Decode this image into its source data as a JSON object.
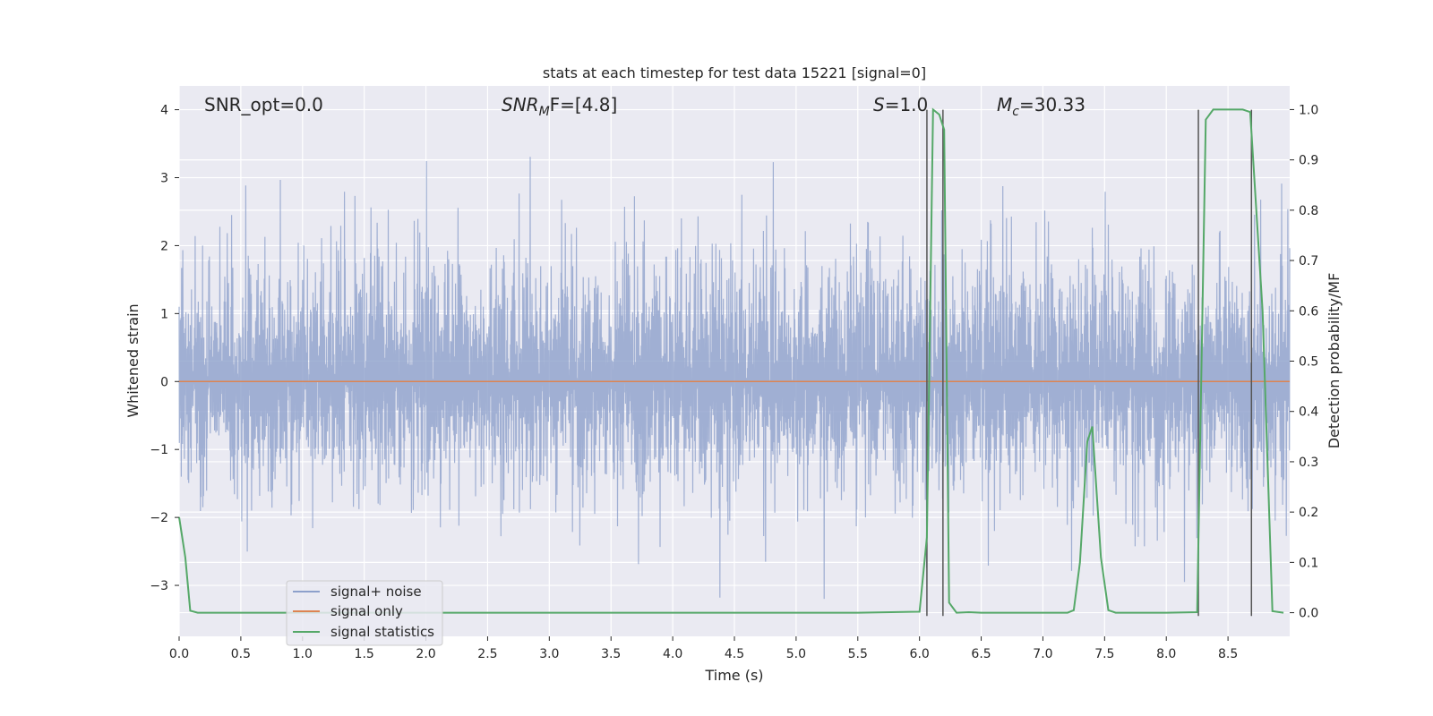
{
  "chart_data": {
    "type": "line",
    "title": "stats at each timestep for test data 15221 [signal=0]",
    "xlabel": "Time (s)",
    "ylabel": "Whitened strain",
    "y2label": "Detection probability/MF",
    "xlim": [
      0,
      9.0
    ],
    "ylim": [
      -3.75,
      4.35
    ],
    "y2lim": [
      -0.047,
      1.047
    ],
    "xticks": [
      0.0,
      0.5,
      1.0,
      1.5,
      2.0,
      2.5,
      3.0,
      3.5,
      4.0,
      4.5,
      5.0,
      5.5,
      6.0,
      6.5,
      7.0,
      7.5,
      8.0,
      8.5
    ],
    "xtick_labels": [
      "0.0",
      "0.5",
      "1.0",
      "1.5",
      "2.0",
      "2.5",
      "3.0",
      "3.5",
      "4.0",
      "4.5",
      "5.0",
      "5.5",
      "6.0",
      "6.5",
      "7.0",
      "7.5",
      "8.0",
      "8.5"
    ],
    "yticks": [
      -3,
      -2,
      -1,
      0,
      1,
      2,
      3,
      4
    ],
    "ytick_labels": [
      "−3",
      "−2",
      "−1",
      "0",
      "1",
      "2",
      "3",
      "4"
    ],
    "y2ticks": [
      0.0,
      0.1,
      0.2,
      0.3,
      0.4,
      0.5,
      0.6,
      0.7,
      0.8,
      0.9,
      1.0
    ],
    "y2tick_labels": [
      "0.0",
      "0.1",
      "0.2",
      "0.3",
      "0.4",
      "0.5",
      "0.6",
      "0.7",
      "0.8",
      "0.9",
      "1.0"
    ],
    "grid": true,
    "legend_position": "lower-left",
    "annotations": {
      "snr_opt": "SNR_opt=0.0",
      "snr_mf_main": "SNR",
      "snr_mf_sub": "M",
      "snr_mf_tail": "F=[4.8]",
      "s_main": "S",
      "s_tail": "=1.0",
      "mc_main": "M",
      "mc_sub": "c",
      "mc_tail": "=30.33"
    },
    "series": [
      {
        "name": "signal+ noise",
        "color": "#8da0cb",
        "kind": "noise",
        "x_range": [
          0,
          9.0
        ],
        "sigma": 0.85,
        "ymin": -3.45,
        "ymax": 4.0
      },
      {
        "name": "signal only",
        "color": "#dd8452",
        "kind": "line",
        "x": [
          0,
          9.0
        ],
        "y": [
          0,
          0
        ]
      },
      {
        "name": "signal statistics",
        "color": "#55a868",
        "kind": "line",
        "axis": "right",
        "x": [
          0.0,
          0.05,
          0.09,
          0.15,
          0.2,
          0.5,
          1.0,
          2.0,
          3.0,
          4.0,
          5.0,
          5.5,
          6.0,
          6.06,
          6.11,
          6.16,
          6.2,
          6.24,
          6.3,
          6.4,
          6.5,
          7.0,
          7.2,
          7.25,
          7.3,
          7.36,
          7.4,
          7.47,
          7.53,
          7.59,
          7.65,
          8.0,
          8.25,
          8.32,
          8.38,
          8.5,
          8.62,
          8.68,
          8.78,
          8.86,
          8.95
        ],
        "y": [
          0.19,
          0.11,
          0.004,
          0.0,
          0.0,
          0.0,
          0.0,
          0.0,
          0.0,
          0.0,
          0.0,
          0.0,
          0.002,
          0.15,
          1.0,
          0.99,
          0.96,
          0.02,
          0.0,
          0.001,
          0.0,
          0.0,
          0.0,
          0.005,
          0.1,
          0.34,
          0.37,
          0.11,
          0.005,
          0.0,
          0.0,
          0.0,
          0.001,
          0.98,
          1.0,
          1.0,
          1.0,
          0.995,
          0.6,
          0.003,
          0.0
        ]
      }
    ],
    "vlines": [
      {
        "x": 6.06,
        "y_from": -3.45,
        "y_to": 4.0,
        "color": "#555555"
      },
      {
        "x": 6.19,
        "y_from": -3.45,
        "y_to": 4.0,
        "color": "#555555"
      },
      {
        "x": 8.26,
        "y_from": -3.45,
        "y_to": 4.0,
        "color": "#555555"
      },
      {
        "x": 8.69,
        "y_from": -3.45,
        "y_to": 4.0,
        "color": "#555555"
      }
    ],
    "colors": {
      "plot_bg": "#eaeaf2",
      "grid": "#ffffff"
    }
  }
}
